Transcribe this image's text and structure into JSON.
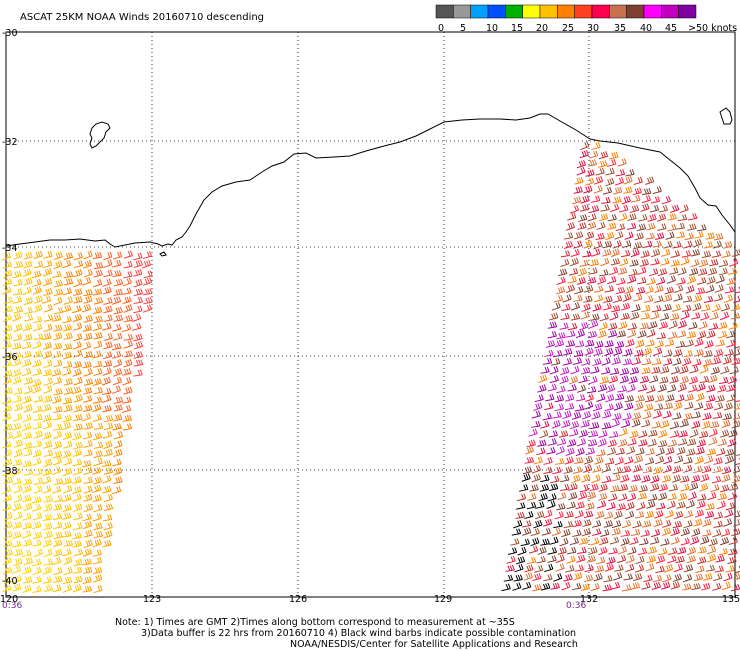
{
  "title": "ASCAT 25KM NOAA Winds 20160710 descending",
  "legend": {
    "colors": [
      "#555555",
      "#999999",
      "#00a0ff",
      "#0050ff",
      "#00b000",
      "#ffff00",
      "#ffc000",
      "#ff8000",
      "#ff4020",
      "#ff0050",
      "#c87050",
      "#804030",
      "#ff00ff",
      "#c000c0",
      "#8000a0"
    ],
    "labels": [
      "0",
      "5",
      "10",
      "15",
      "20",
      "25",
      "30",
      "35",
      "40",
      "45",
      ">50 knots"
    ]
  },
  "axes": {
    "lat_labels": [
      "-30",
      "-32",
      "-34",
      "-36",
      "-38",
      "-40"
    ],
    "lon_labels": [
      "120",
      "123",
      "126",
      "129",
      "132",
      "135"
    ]
  },
  "time_labels": [
    "0:36",
    "0:36"
  ],
  "notes": {
    "line1": "Note: 1) Times are GMT 2)Times along bottom correspond to measurement at ~35S",
    "line2": "3)Data buffer is 22 hrs from 20160710 4) Black wind barbs indicate possible contamination",
    "line3": "NOAA/NESDIS/Center for Satellite Applications and Research"
  }
}
